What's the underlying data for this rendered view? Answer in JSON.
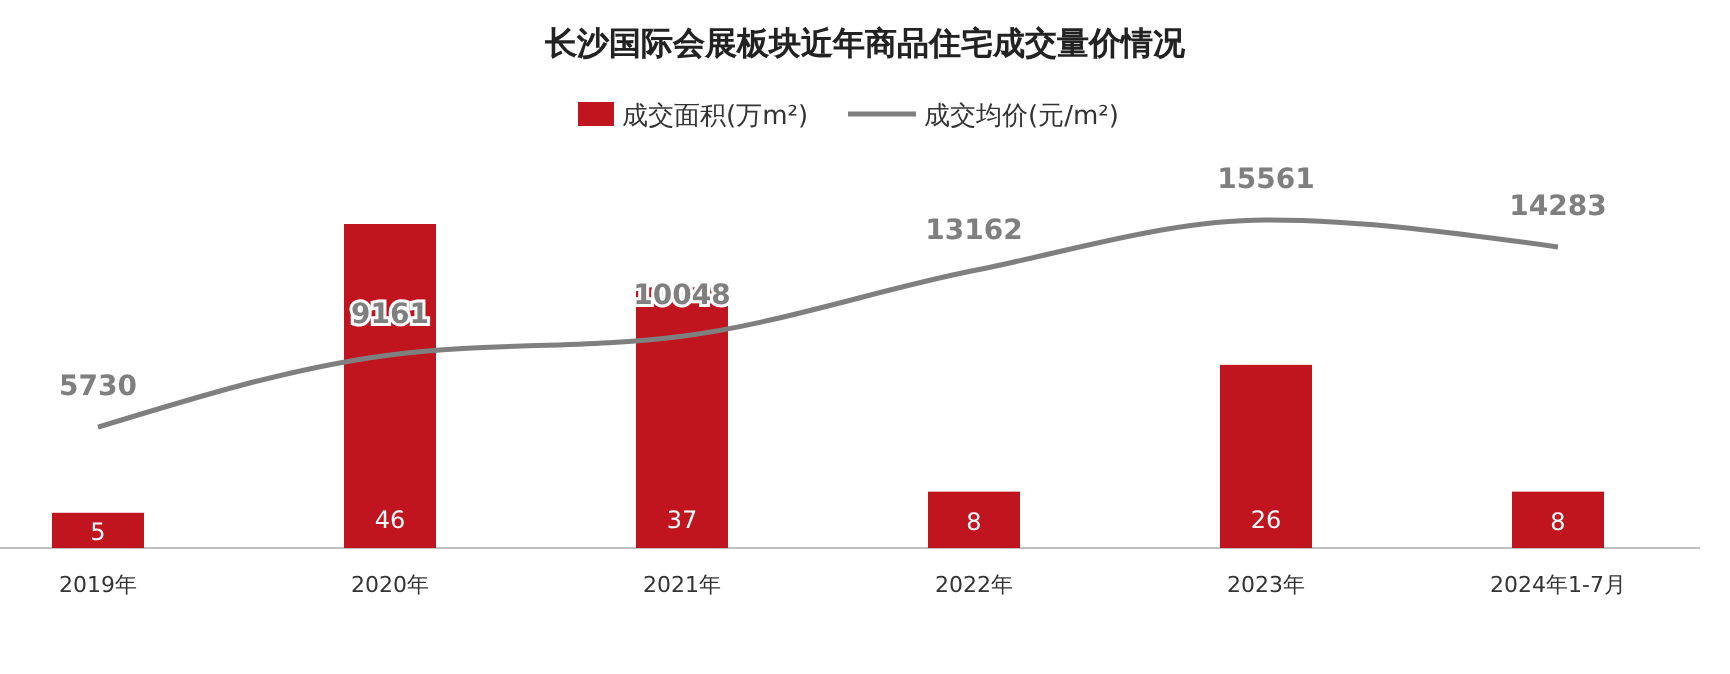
{
  "chart_data": {
    "type": "bar",
    "title": "长沙国际会展板块近年商品住宅成交量价情况",
    "categories": [
      "2019年",
      "2020年",
      "2021年",
      "2022年",
      "2023年",
      "2024年1-7月"
    ],
    "series": [
      {
        "name": "成交面积(万m²)",
        "color": "#c0141e",
        "values": [
          5,
          46,
          37,
          8,
          26,
          8
        ]
      },
      {
        "name": "成交均价(元/m²)",
        "type": "line",
        "axis": "y2",
        "color": "#7f7f7f",
        "values": [
          5730,
          9161,
          10048,
          13162,
          15561,
          14283
        ]
      }
    ],
    "data_labels": true,
    "legend": "top",
    "tick_labels": "x"
  }
}
